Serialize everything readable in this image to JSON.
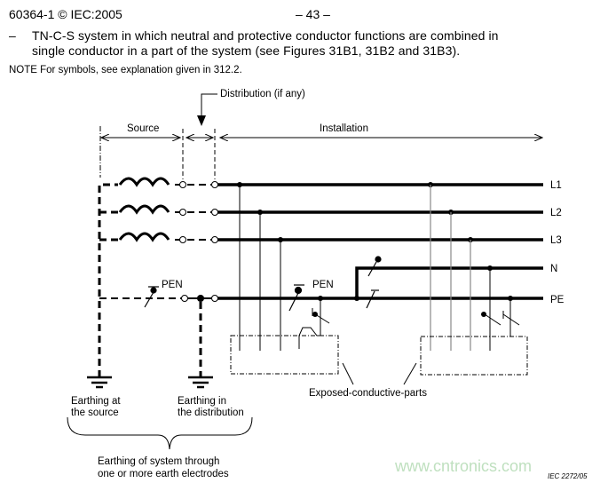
{
  "header": {
    "doc_id": "60364-1 © IEC:2005",
    "page": "– 43 –"
  },
  "body": {
    "bullet": "–",
    "line1": "TN-C-S system in which neutral and protective conductor functions are combined in",
    "line2": "single conductor in a part of the system (see Figures 31B1, 31B2 and 31B3).",
    "note": "NOTE  For symbols, see explanation given in 312.2."
  },
  "diagram": {
    "distribution": "Distribution (if any)",
    "source": "Source",
    "installation": "Installation",
    "conductors": [
      "L1",
      "L2",
      "L3",
      "N",
      "PE"
    ],
    "pen_left": "PEN",
    "pen_mid": "PEN",
    "exposed": "Exposed-conductive-parts",
    "earth_source": [
      "Earthing at",
      "the source"
    ],
    "earth_distribution": [
      "Earthing in",
      "the distribution"
    ],
    "earthing_system": [
      "Earthing of system through",
      "one or more earth electrodes"
    ],
    "figure_ref": "IEC   2272/05"
  },
  "watermark": "www.cntronics.com",
  "colors": {
    "watermark": "#bfe0bf",
    "gray_line": "#888888"
  }
}
